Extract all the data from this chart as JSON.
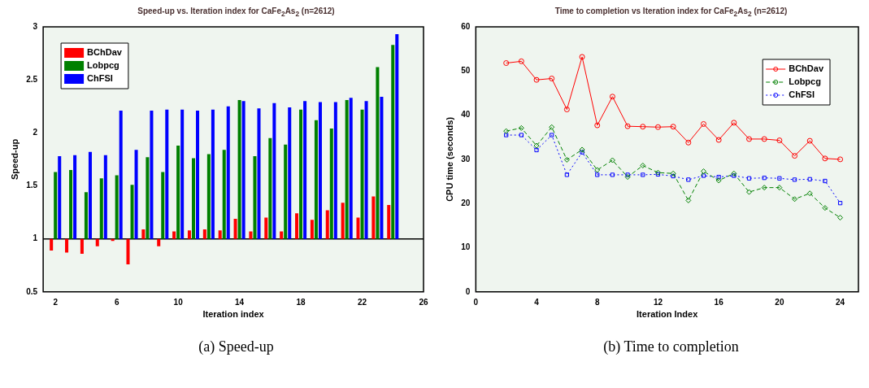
{
  "chart_data": [
    {
      "type": "bar",
      "title": "Speed-up vs. Iteration index for CaFe$_{2}$As$_{2}$ (n=2612)",
      "xlabel": "Iteration index",
      "ylabel": "Speed-up",
      "annotations": [
        "(a)  Speed-up"
      ],
      "x": [
        2,
        3,
        4,
        5,
        6,
        7,
        8,
        9,
        10,
        11,
        12,
        13,
        14,
        15,
        16,
        17,
        18,
        19,
        20,
        21,
        22,
        23,
        24
      ],
      "series": [
        {
          "name": "BChDav",
          "color": "#ff0000",
          "base": [
            1,
            1,
            1,
            1,
            1,
            1,
            1,
            1,
            1,
            1,
            1,
            1,
            1,
            1,
            1,
            1,
            1,
            1,
            1,
            1,
            1,
            1,
            1
          ],
          "values": [
            -0.11,
            -0.13,
            -0.14,
            -0.07,
            -0.02,
            -0.24,
            0.09,
            -0.07,
            0.07,
            0.08,
            0.09,
            0.08,
            0.19,
            0.07,
            0.2,
            0.07,
            0.24,
            0.18,
            0.27,
            0.34,
            0.2,
            0.4,
            0.32
          ]
        },
        {
          "name": "Lobpcg",
          "color": "#008000",
          "base": [
            1,
            1,
            1,
            1,
            1,
            1,
            1,
            1,
            1,
            1,
            1,
            1,
            1,
            1,
            1,
            1,
            1,
            1,
            1,
            1,
            1,
            1,
            1
          ],
          "values": [
            0.63,
            0.65,
            0.44,
            0.57,
            0.6,
            0.51,
            0.77,
            0.63,
            0.88,
            0.76,
            0.8,
            0.84,
            1.31,
            0.78,
            0.95,
            0.89,
            1.22,
            1.12,
            1.04,
            1.31,
            1.22,
            1.62,
            1.83
          ]
        },
        {
          "name": "ChFSI",
          "color": "#0000ff",
          "base": [
            1,
            1,
            1,
            1,
            1,
            1,
            1,
            1,
            1,
            1,
            1,
            1,
            1,
            1,
            1,
            1,
            1,
            1,
            1,
            1,
            1,
            1,
            1
          ],
          "values": [
            0.78,
            0.79,
            0.82,
            0.79,
            1.21,
            0.84,
            1.21,
            1.22,
            1.22,
            1.21,
            1.22,
            1.25,
            1.3,
            1.23,
            1.28,
            1.24,
            1.3,
            1.29,
            1.29,
            1.33,
            1.3,
            1.34,
            1.93
          ]
        }
      ],
      "xlim": [
        1.2,
        26
      ],
      "xticks": [
        2,
        6,
        10,
        14,
        18,
        22,
        26
      ],
      "ylim": [
        0.5,
        3
      ],
      "yticks": [
        0.5,
        1,
        1.5,
        2,
        2.5,
        3
      ],
      "ref_lines": [
        {
          "axis": "y",
          "value": 1,
          "color": "#000000"
        }
      ],
      "legend": "top left",
      "grid": false
    },
    {
      "type": "line",
      "title": "Time to completion vs Iteration index for CaFe$_{2}$As$_{2}$ (n=2612)",
      "xlabel": "Iteration Index",
      "ylabel": "CPU time (seconds)",
      "annotations": [
        "(b)  Time to completion"
      ],
      "x": [
        2,
        3,
        4,
        5,
        6,
        7,
        8,
        9,
        10,
        11,
        12,
        13,
        14,
        15,
        16,
        17,
        18,
        19,
        20,
        21,
        22,
        23,
        24
      ],
      "series": [
        {
          "name": "BChDav",
          "color": "#ff0000",
          "marker": "circle",
          "line_style": "solid",
          "values": [
            51.8,
            52.2,
            48.0,
            48.3,
            41.3,
            53.2,
            37.7,
            44.2,
            37.5,
            37.4,
            37.3,
            37.4,
            33.8,
            38.0,
            34.4,
            38.3,
            34.6,
            34.6,
            34.3,
            30.8,
            34.2,
            30.2,
            30.0
          ]
        },
        {
          "name": "Lobpcg",
          "color": "#008000",
          "marker": "diamond",
          "line_style": "dashed",
          "values": [
            36.4,
            37.1,
            33.1,
            37.3,
            29.9,
            32.2,
            27.6,
            29.8,
            26.0,
            28.6,
            27.0,
            26.8,
            20.7,
            27.3,
            25.2,
            26.8,
            22.6,
            23.6,
            23.6,
            21.0,
            22.3,
            19.0,
            16.8
          ]
        },
        {
          "name": "ChFSI",
          "color": "#0000ff",
          "marker": "square",
          "line_style": "dotted",
          "values": [
            35.5,
            35.5,
            32.1,
            35.5,
            26.5,
            31.6,
            26.5,
            26.5,
            26.5,
            26.5,
            26.6,
            26.2,
            25.4,
            26.3,
            26.0,
            26.3,
            25.7,
            25.8,
            25.7,
            25.4,
            25.5,
            25.1,
            20.1
          ]
        }
      ],
      "xlim": [
        0,
        25.2
      ],
      "xticks": [
        0,
        4,
        8,
        12,
        16,
        20,
        24
      ],
      "ylim": [
        0,
        60
      ],
      "yticks": [
        0,
        10,
        20,
        30,
        40,
        50,
        60
      ],
      "legend": "top right",
      "grid": false
    }
  ]
}
